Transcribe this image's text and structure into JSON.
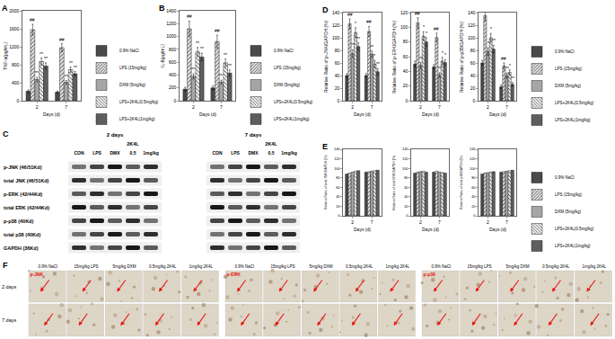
{
  "chart_data": [
    {
      "type": "bar",
      "panel_label": "A",
      "y_label": "TNF-α(pg/mL)",
      "x_label": "Days (d)",
      "categories": [
        "2",
        "7"
      ],
      "ylim": [
        0,
        2000
      ],
      "yticks": [
        0,
        400,
        800,
        1200,
        1600,
        2000
      ],
      "grid": false,
      "legend": "right",
      "series": [
        {
          "name": "0.9% NaCl",
          "color": "#4a4a4a",
          "values": [
            210,
            190
          ],
          "errors": [
            30,
            25
          ],
          "marks": [
            null,
            null
          ]
        },
        {
          "name": "LPS (15mg/kg)",
          "color": "#e0e0e0",
          "values": [
            1580,
            1180
          ],
          "errors": [
            120,
            90
          ],
          "marks": [
            "##",
            "##"
          ]
        },
        {
          "name": "DXM (5mg/kg)",
          "color": "#a6a6a6",
          "values": [
            470,
            410
          ],
          "errors": [
            50,
            40
          ],
          "marks": [
            "**",
            "**"
          ]
        },
        {
          "name": "LPS+2K4L(0.5mg/kg)",
          "color": "#f2f2f2",
          "values": [
            870,
            690
          ],
          "errors": [
            80,
            60
          ],
          "marks": [
            "**",
            "**"
          ]
        },
        {
          "name": "LPS+2K4L(1mg/kg)",
          "color": "#5e5e5e",
          "values": [
            770,
            600
          ],
          "errors": [
            70,
            50
          ],
          "marks": [
            "**",
            "**"
          ]
        }
      ]
    },
    {
      "type": "bar",
      "panel_label": "B",
      "y_label": "IL-6(pg/mL)",
      "x_label": "Days (d)",
      "categories": [
        "2",
        "7"
      ],
      "ylim": [
        0,
        1400
      ],
      "yticks": [
        0,
        200,
        400,
        600,
        800,
        1000,
        1200,
        1400
      ],
      "grid": false,
      "legend": "right",
      "series": [
        {
          "name": "0.9% NaCl",
          "color": "#4a4a4a",
          "values": [
            180,
            200
          ],
          "errors": [
            30,
            30
          ],
          "marks": [
            null,
            null
          ]
        },
        {
          "name": "LPS (15mg/kg)",
          "color": "#e0e0e0",
          "values": [
            1120,
            920
          ],
          "errors": [
            120,
            100
          ],
          "marks": [
            "##",
            "##"
          ]
        },
        {
          "name": "DXM (5mg/kg)",
          "color": "#a6a6a6",
          "values": [
            380,
            290
          ],
          "errors": [
            40,
            30
          ],
          "marks": [
            "**",
            "**"
          ]
        },
        {
          "name": "LPS+2K4L(0.5mg/kg)",
          "color": "#f2f2f2",
          "values": [
            760,
            590
          ],
          "errors": [
            70,
            60
          ],
          "marks": [
            "**",
            "**"
          ]
        },
        {
          "name": "LPS+2K4L(1mg/kg)",
          "color": "#5e5e5e",
          "values": [
            680,
            430
          ],
          "errors": [
            60,
            50
          ],
          "marks": [
            "**",
            "**"
          ]
        }
      ]
    },
    {
      "type": "bar",
      "panel_label": "D",
      "y_label": "Relative Ratio of p-JNK/GAPDH (%)",
      "x_label": "Days (d)",
      "categories": [
        "2",
        "7"
      ],
      "ylim": [
        0,
        140
      ],
      "yticks": [
        0,
        20,
        40,
        60,
        80,
        100,
        120,
        140
      ],
      "grid": false,
      "series": [
        {
          "name": "0.9% NaCl",
          "color": "#4a4a4a",
          "values": [
            40,
            40
          ],
          "errors": [
            3,
            3
          ],
          "marks": [
            null,
            null
          ]
        },
        {
          "name": "LPS (15mg/kg)",
          "color": "#e0e0e0",
          "values": [
            122,
            110
          ],
          "errors": [
            8,
            8
          ],
          "marks": [
            "##",
            "##"
          ]
        },
        {
          "name": "DXM (5mg/kg)",
          "color": "#a6a6a6",
          "values": [
            75,
            74
          ],
          "errors": [
            6,
            5
          ],
          "marks": [
            "**",
            "**"
          ]
        },
        {
          "name": "LPS+2K4L(0.5mg/kg)",
          "color": "#f2f2f2",
          "values": [
            108,
            58
          ],
          "errors": [
            8,
            6
          ],
          "marks": [
            "*",
            "*"
          ]
        },
        {
          "name": "LPS+2K4L(1mg/kg)",
          "color": "#5e5e5e",
          "values": [
            86,
            46
          ],
          "errors": [
            6,
            5
          ],
          "marks": [
            "**",
            "**"
          ]
        }
      ]
    },
    {
      "type": "bar",
      "y_label": "Relative Ratio of p-ERK/GAPDH (%)",
      "x_label": "Days (d)",
      "categories": [
        "2",
        "7"
      ],
      "ylim": [
        0,
        120
      ],
      "yticks": [
        0,
        20,
        40,
        60,
        80,
        100,
        120
      ],
      "grid": false,
      "series": [
        {
          "name": "0.9% NaCl",
          "color": "#4a4a4a",
          "values": [
            50,
            46
          ],
          "errors": [
            4,
            3
          ],
          "marks": [
            null,
            null
          ]
        },
        {
          "name": "LPS (15mg/kg)",
          "color": "#e0e0e0",
          "values": [
            106,
            86
          ],
          "errors": [
            7,
            6
          ],
          "marks": [
            "##",
            "##"
          ]
        },
        {
          "name": "DXM (5mg/kg)",
          "color": "#a6a6a6",
          "values": [
            48,
            35
          ],
          "errors": [
            4,
            3
          ],
          "marks": [
            "**",
            "**"
          ]
        },
        {
          "name": "LPS+2K4L(0.5mg/kg)",
          "color": "#f2f2f2",
          "values": [
            88,
            54
          ],
          "errors": [
            6,
            5
          ],
          "marks": [
            "*",
            "*"
          ]
        },
        {
          "name": "LPS+2K4L(1mg/kg)",
          "color": "#5e5e5e",
          "values": [
            80,
            52
          ],
          "errors": [
            6,
            4
          ],
          "marks": [
            "*",
            "*"
          ]
        }
      ]
    },
    {
      "type": "bar",
      "y_label": "Relative Ratio of p-p38/GAPDH (%)",
      "x_label": "Days (d)",
      "categories": [
        "2",
        "7"
      ],
      "ylim": [
        0,
        140
      ],
      "yticks": [
        0,
        20,
        40,
        60,
        80,
        100,
        120,
        140
      ],
      "grid": false,
      "legend": "right",
      "series": [
        {
          "name": "0.9% NaCl",
          "color": "#4a4a4a",
          "values": [
            60,
            22
          ],
          "errors": [
            4,
            3
          ],
          "marks": [
            null,
            null
          ]
        },
        {
          "name": "LPS (15mg/kg)",
          "color": "#e0e0e0",
          "values": [
            135,
            55
          ],
          "errors": [
            8,
            5
          ],
          "marks": [
            "##",
            "##"
          ]
        },
        {
          "name": "DXM (5mg/kg)",
          "color": "#a6a6a6",
          "values": [
            78,
            40
          ],
          "errors": [
            6,
            4
          ],
          "marks": [
            "*",
            "**"
          ]
        },
        {
          "name": "LPS+2K4L(0.5mg/kg)",
          "color": "#f2f2f2",
          "values": [
            100,
            45
          ],
          "errors": [
            7,
            4
          ],
          "marks": [
            "*",
            "*"
          ]
        },
        {
          "name": "LPS+2K4L(1mg/kg)",
          "color": "#5e5e5e",
          "values": [
            82,
            26
          ],
          "errors": [
            6,
            3
          ],
          "marks": [
            "**",
            "**"
          ]
        }
      ]
    },
    {
      "type": "bar",
      "panel_label": "E",
      "y_label": "Relative Ratio of total JNK/GAPDH (%)",
      "x_label": "Days (d)",
      "categories": [
        "2",
        "7"
      ],
      "ylim": [
        0,
        140
      ],
      "yticks": [
        0,
        20,
        40,
        60,
        80,
        100,
        120,
        140
      ],
      "grid": false,
      "series": [
        {
          "name": "0.9% NaCl",
          "color": "#4a4a4a",
          "values": [
            88,
            92
          ]
        },
        {
          "name": "LPS (15mg/kg)",
          "color": "#e0e0e0",
          "values": [
            90,
            93
          ]
        },
        {
          "name": "DXM (5mg/kg)",
          "color": "#a6a6a6",
          "values": [
            92,
            94
          ]
        },
        {
          "name": "LPS+2K4L(0.5mg/kg)",
          "color": "#f2f2f2",
          "values": [
            94,
            95
          ]
        },
        {
          "name": "LPS+2K4L(1mg/kg)",
          "color": "#5e5e5e",
          "values": [
            95,
            96
          ]
        }
      ]
    },
    {
      "type": "bar",
      "y_label": "Relative Ratio of total ERK/GAPDH (%)",
      "x_label": "Days (d)",
      "categories": [
        "2",
        "7"
      ],
      "ylim": [
        0,
        140
      ],
      "yticks": [
        0,
        20,
        40,
        60,
        80,
        100,
        120,
        140
      ],
      "grid": false,
      "series": [
        {
          "name": "0.9% NaCl",
          "color": "#4a4a4a",
          "values": [
            90,
            92
          ]
        },
        {
          "name": "LPS (15mg/kg)",
          "color": "#e0e0e0",
          "values": [
            92,
            94
          ]
        },
        {
          "name": "DXM (5mg/kg)",
          "color": "#a6a6a6",
          "values": [
            93,
            92
          ]
        },
        {
          "name": "LPS+2K4L(0.5mg/kg)",
          "color": "#f2f2f2",
          "values": [
            94,
            91
          ]
        },
        {
          "name": "LPS+2K4L(1mg/kg)",
          "color": "#5e5e5e",
          "values": [
            92,
            90
          ]
        }
      ]
    },
    {
      "type": "bar",
      "y_label": "Relative Ratio of total p38/GAPDH (%)",
      "x_label": "Days (d)",
      "categories": [
        "2",
        "7"
      ],
      "ylim": [
        0,
        140
      ],
      "yticks": [
        0,
        20,
        40,
        60,
        80,
        100,
        120,
        140
      ],
      "grid": false,
      "legend": "right",
      "series": [
        {
          "name": "0.9% NaCl",
          "color": "#4a4a4a",
          "values": [
            88,
            92
          ]
        },
        {
          "name": "LPS (15mg/kg)",
          "color": "#e0e0e0",
          "values": [
            90,
            93
          ]
        },
        {
          "name": "DXM (5mg/kg)",
          "color": "#a6a6a6",
          "values": [
            91,
            94
          ]
        },
        {
          "name": "LPS+2K4L(0.5mg/kg)",
          "color": "#f2f2f2",
          "values": [
            92,
            95
          ]
        },
        {
          "name": "LPS+2K4L(1mg/kg)",
          "color": "#5e5e5e",
          "values": [
            93,
            96
          ]
        }
      ]
    }
  ],
  "western_blot": {
    "panel_label": "C",
    "time_headers": [
      "2 days",
      "7 days"
    ],
    "group_label": "2K4L",
    "lane_labels": [
      "CON",
      "LPS",
      "DMX",
      "0.5",
      "1mg/kg"
    ],
    "rows": [
      "p-JNK (46/51Kd)",
      "total JNK (46/51Kd)",
      "p-ERK (42/44Kd)",
      "total ERK (42/44Kd)",
      "p-p38 (40Kd)",
      "total p38 (40Kd)",
      "GAPDH (36Kd)"
    ]
  },
  "histology": {
    "panel_label": "F",
    "row_labels": [
      "2 days",
      "7 days"
    ],
    "column_headers": [
      "0.9% NaCl",
      "15mg/kg LPS",
      "5mg/kg DXM",
      "0.5mg/kg 2K4L",
      "1mg/kg 2K4L"
    ],
    "groups": [
      "p-JNK",
      "p-ERK",
      "p-p38"
    ]
  }
}
